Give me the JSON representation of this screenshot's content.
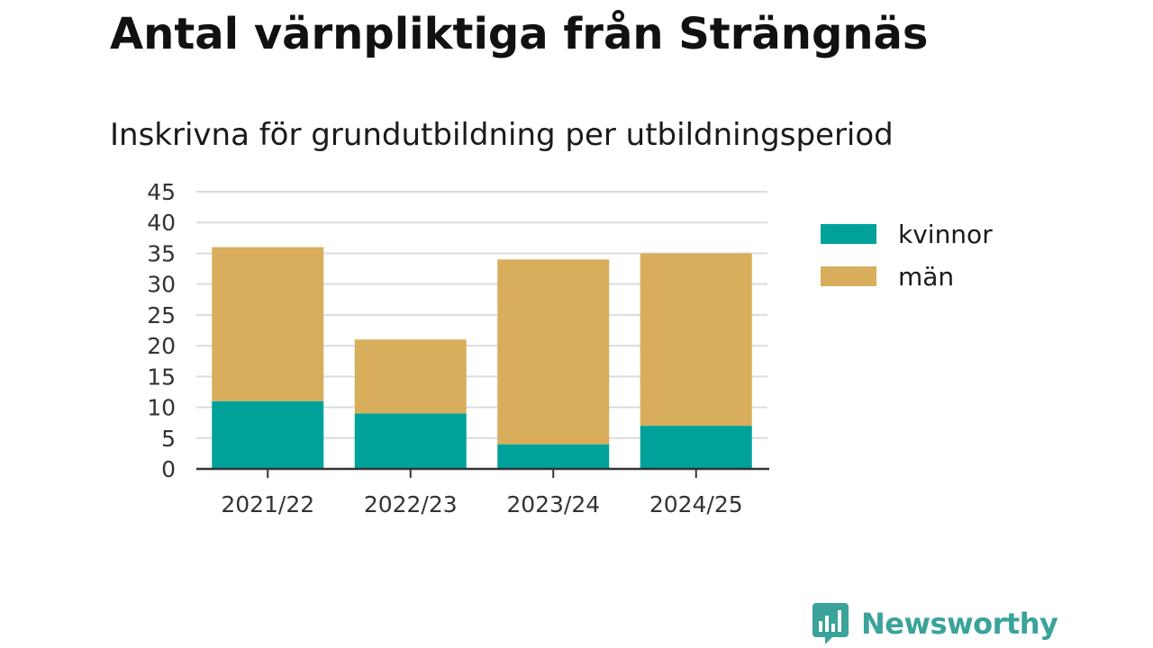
{
  "chart_data": {
    "type": "bar",
    "stacked": true,
    "title": "Antal värnpliktiga från Strängnäs",
    "subtitle": "Inskrivna för grundutbildning per utbildningsperiod",
    "categories": [
      "2021/22",
      "2022/23",
      "2023/24",
      "2024/25"
    ],
    "series": [
      {
        "name": "kvinnor",
        "values": [
          11,
          9,
          4,
          7
        ],
        "color": "#00a29a"
      },
      {
        "name": "män",
        "values": [
          25,
          12,
          30,
          28
        ],
        "color": "#d8ad5b"
      }
    ],
    "ylim": [
      0,
      45
    ],
    "yticks": [
      "0",
      "5",
      "10",
      "15",
      "20",
      "25",
      "30",
      "35",
      "40",
      "45"
    ],
    "xlabel": "",
    "ylabel": "",
    "grid": true,
    "legend": "right"
  },
  "branding": {
    "name": "Newsworthy",
    "color": "#3aa39a",
    "icon": "newsworthy-chart-bubble-icon"
  }
}
